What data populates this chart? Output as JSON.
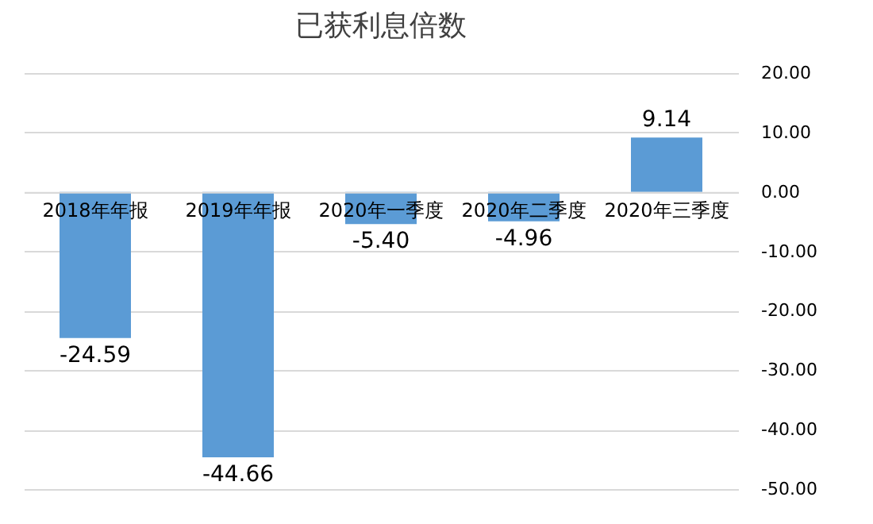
{
  "chart_data": {
    "type": "bar",
    "title": "已获利息倍数",
    "categories": [
      "2018年年报",
      "2019年年报",
      "2020年一季度",
      "2020年二季度",
      "2020年三季度"
    ],
    "values": [
      -24.59,
      -44.66,
      -5.4,
      -4.96,
      9.14
    ],
    "value_labels": [
      "-24.59",
      "-44.66",
      "-5.40",
      "-4.96",
      "9.14"
    ],
    "color": "#5b9bd5",
    "ylim": [
      -50,
      20
    ],
    "yticks": [
      {
        "value": 20,
        "label": "20.00"
      },
      {
        "value": 10,
        "label": "10.00"
      },
      {
        "value": 0,
        "label": "0.00"
      },
      {
        "value": -10,
        "label": "-10.00"
      },
      {
        "value": -20,
        "label": "-20.00"
      },
      {
        "value": -30,
        "label": "-30.00"
      },
      {
        "value": -40,
        "label": "-40.00"
      },
      {
        "value": -50,
        "label": "-50.00"
      }
    ],
    "grid": "y"
  }
}
